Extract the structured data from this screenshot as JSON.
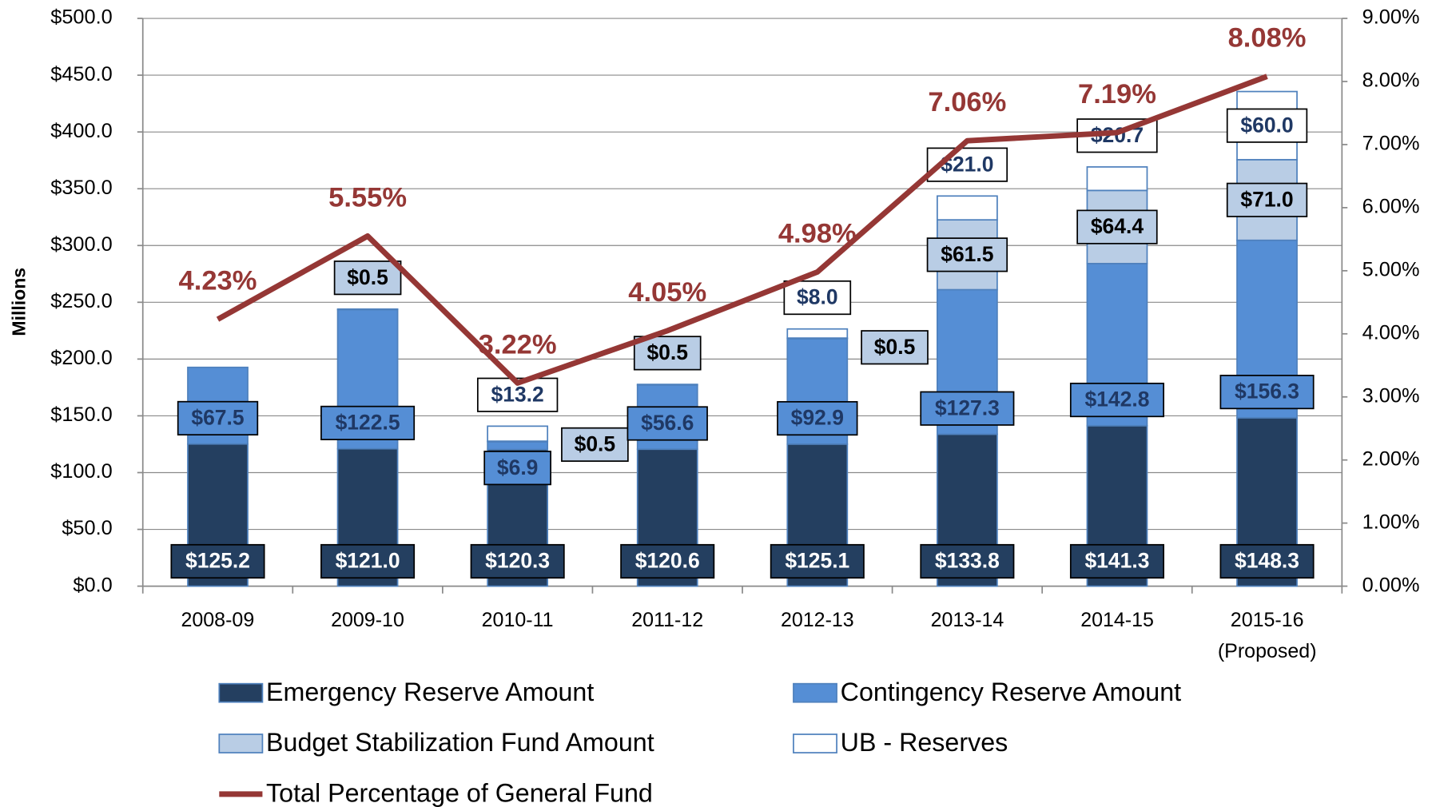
{
  "chart_data": {
    "type": "bar",
    "stacked": true,
    "y_label": "Millions",
    "categories": [
      "2008-09",
      "2009-10",
      "2010-11",
      "2011-12",
      "2012-13",
      "2013-14",
      "2014-15",
      "2015-16\n(Proposed)"
    ],
    "ylim": [
      0,
      500
    ],
    "yticks": [
      {
        "value": 0,
        "label": "$0.0"
      },
      {
        "value": 50,
        "label": "$50.0"
      },
      {
        "value": 100,
        "label": "$100.0"
      },
      {
        "value": 150,
        "label": "$150.0"
      },
      {
        "value": 200,
        "label": "$200.0"
      },
      {
        "value": 250,
        "label": "$250.0"
      },
      {
        "value": 300,
        "label": "$300.0"
      },
      {
        "value": 350,
        "label": "$350.0"
      },
      {
        "value": 400,
        "label": "$400.0"
      },
      {
        "value": 450,
        "label": "$450.0"
      },
      {
        "value": 500,
        "label": "$500.0"
      }
    ],
    "y2lim": [
      0,
      9
    ],
    "y2ticks": [
      {
        "value": 0,
        "label": "0.00%"
      },
      {
        "value": 1,
        "label": "1.00%"
      },
      {
        "value": 2,
        "label": "2.00%"
      },
      {
        "value": 3,
        "label": "3.00%"
      },
      {
        "value": 4,
        "label": "4.00%"
      },
      {
        "value": 5,
        "label": "5.00%"
      },
      {
        "value": 6,
        "label": "6.00%"
      },
      {
        "value": 7,
        "label": "7.00%"
      },
      {
        "value": 8,
        "label": "8.00%"
      },
      {
        "value": 9,
        "label": "9.00%"
      }
    ],
    "grid": true,
    "legend": "bottom",
    "series": [
      {
        "name": "Emergency Reserve Amount",
        "color": "#243f60",
        "label_color": "#ffffff",
        "values": [
          125.2,
          121.0,
          120.3,
          120.6,
          125.1,
          133.8,
          141.3,
          148.3
        ],
        "value_labels": [
          "$125.2",
          "$121.0",
          "$120.3",
          "$120.6",
          "$125.1",
          "$133.8",
          "$141.3",
          "$148.3"
        ]
      },
      {
        "name": "Contingency Reserve Amount",
        "color": "#558ed5",
        "label_color": "#1f3864",
        "values": [
          67.5,
          122.5,
          6.9,
          56.6,
          92.9,
          127.3,
          142.8,
          156.3
        ],
        "value_labels": [
          "$67.5",
          "$122.5",
          "$6.9",
          "$56.6",
          "$92.9",
          "$127.3",
          "$142.8",
          "$156.3"
        ]
      },
      {
        "name": "Budget Stabilization Fund Amount",
        "color": "#b9cde5",
        "label_color": "#000000",
        "values": [
          null,
          0.5,
          0.5,
          0.5,
          0.5,
          61.5,
          64.4,
          71.0
        ],
        "value_labels": [
          null,
          "$0.5",
          "$0.5",
          "$0.5",
          "$0.5",
          "$61.5",
          "$64.4",
          "$71.0"
        ]
      },
      {
        "name": "UB - Reserves",
        "color": "#ffffff",
        "label_color": "#1f3864",
        "values": [
          null,
          null,
          13.2,
          null,
          8.0,
          21.0,
          20.7,
          60.0
        ],
        "value_labels": [
          null,
          null,
          "$13.2",
          null,
          "$8.0",
          "$21.0",
          "$20.7",
          "$60.0"
        ]
      },
      {
        "name": "Total Percentage of General Fund",
        "type": "line",
        "axis": "y2",
        "color": "#953735",
        "values": [
          4.23,
          5.55,
          3.22,
          4.05,
          4.98,
          7.06,
          7.19,
          8.08
        ],
        "value_labels": [
          "4.23%",
          "5.55%",
          "3.22%",
          "4.05%",
          "4.98%",
          "7.06%",
          "7.19%",
          "8.08%"
        ]
      }
    ]
  }
}
